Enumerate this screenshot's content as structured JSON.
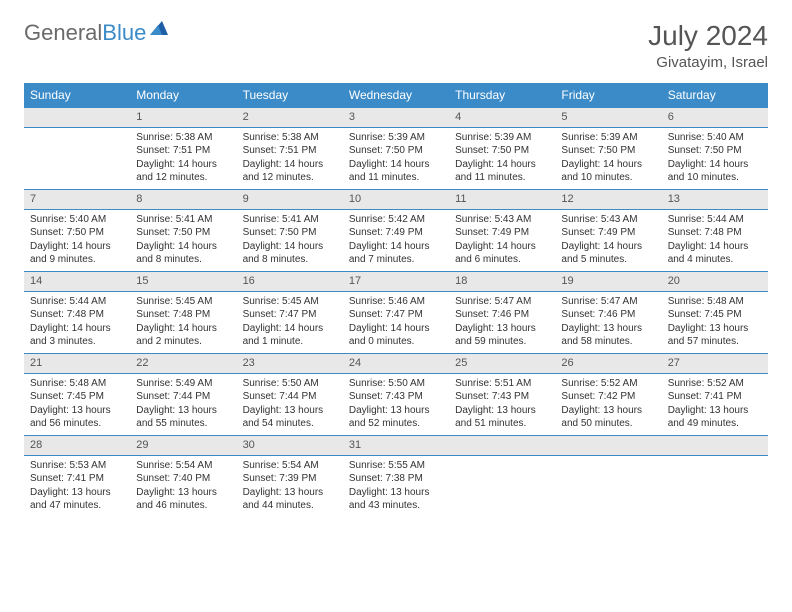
{
  "logo": {
    "general": "General",
    "blue": "Blue"
  },
  "title": "July 2024",
  "location": "Givatayim, Israel",
  "colors": {
    "header_bg": "#3b8bc9",
    "header_text": "#ffffff",
    "daynum_bg": "#e8e8e8",
    "daynum_border": "#3b8bc9",
    "body_text": "#333333",
    "title_text": "#555555"
  },
  "weekdays": [
    "Sunday",
    "Monday",
    "Tuesday",
    "Wednesday",
    "Thursday",
    "Friday",
    "Saturday"
  ],
  "weeks": [
    [
      {
        "n": "",
        "sr": "",
        "ss": "",
        "dl": ""
      },
      {
        "n": "1",
        "sr": "Sunrise: 5:38 AM",
        "ss": "Sunset: 7:51 PM",
        "dl": "Daylight: 14 hours and 12 minutes."
      },
      {
        "n": "2",
        "sr": "Sunrise: 5:38 AM",
        "ss": "Sunset: 7:51 PM",
        "dl": "Daylight: 14 hours and 12 minutes."
      },
      {
        "n": "3",
        "sr": "Sunrise: 5:39 AM",
        "ss": "Sunset: 7:50 PM",
        "dl": "Daylight: 14 hours and 11 minutes."
      },
      {
        "n": "4",
        "sr": "Sunrise: 5:39 AM",
        "ss": "Sunset: 7:50 PM",
        "dl": "Daylight: 14 hours and 11 minutes."
      },
      {
        "n": "5",
        "sr": "Sunrise: 5:39 AM",
        "ss": "Sunset: 7:50 PM",
        "dl": "Daylight: 14 hours and 10 minutes."
      },
      {
        "n": "6",
        "sr": "Sunrise: 5:40 AM",
        "ss": "Sunset: 7:50 PM",
        "dl": "Daylight: 14 hours and 10 minutes."
      }
    ],
    [
      {
        "n": "7",
        "sr": "Sunrise: 5:40 AM",
        "ss": "Sunset: 7:50 PM",
        "dl": "Daylight: 14 hours and 9 minutes."
      },
      {
        "n": "8",
        "sr": "Sunrise: 5:41 AM",
        "ss": "Sunset: 7:50 PM",
        "dl": "Daylight: 14 hours and 8 minutes."
      },
      {
        "n": "9",
        "sr": "Sunrise: 5:41 AM",
        "ss": "Sunset: 7:50 PM",
        "dl": "Daylight: 14 hours and 8 minutes."
      },
      {
        "n": "10",
        "sr": "Sunrise: 5:42 AM",
        "ss": "Sunset: 7:49 PM",
        "dl": "Daylight: 14 hours and 7 minutes."
      },
      {
        "n": "11",
        "sr": "Sunrise: 5:43 AM",
        "ss": "Sunset: 7:49 PM",
        "dl": "Daylight: 14 hours and 6 minutes."
      },
      {
        "n": "12",
        "sr": "Sunrise: 5:43 AM",
        "ss": "Sunset: 7:49 PM",
        "dl": "Daylight: 14 hours and 5 minutes."
      },
      {
        "n": "13",
        "sr": "Sunrise: 5:44 AM",
        "ss": "Sunset: 7:48 PM",
        "dl": "Daylight: 14 hours and 4 minutes."
      }
    ],
    [
      {
        "n": "14",
        "sr": "Sunrise: 5:44 AM",
        "ss": "Sunset: 7:48 PM",
        "dl": "Daylight: 14 hours and 3 minutes."
      },
      {
        "n": "15",
        "sr": "Sunrise: 5:45 AM",
        "ss": "Sunset: 7:48 PM",
        "dl": "Daylight: 14 hours and 2 minutes."
      },
      {
        "n": "16",
        "sr": "Sunrise: 5:45 AM",
        "ss": "Sunset: 7:47 PM",
        "dl": "Daylight: 14 hours and 1 minute."
      },
      {
        "n": "17",
        "sr": "Sunrise: 5:46 AM",
        "ss": "Sunset: 7:47 PM",
        "dl": "Daylight: 14 hours and 0 minutes."
      },
      {
        "n": "18",
        "sr": "Sunrise: 5:47 AM",
        "ss": "Sunset: 7:46 PM",
        "dl": "Daylight: 13 hours and 59 minutes."
      },
      {
        "n": "19",
        "sr": "Sunrise: 5:47 AM",
        "ss": "Sunset: 7:46 PM",
        "dl": "Daylight: 13 hours and 58 minutes."
      },
      {
        "n": "20",
        "sr": "Sunrise: 5:48 AM",
        "ss": "Sunset: 7:45 PM",
        "dl": "Daylight: 13 hours and 57 minutes."
      }
    ],
    [
      {
        "n": "21",
        "sr": "Sunrise: 5:48 AM",
        "ss": "Sunset: 7:45 PM",
        "dl": "Daylight: 13 hours and 56 minutes."
      },
      {
        "n": "22",
        "sr": "Sunrise: 5:49 AM",
        "ss": "Sunset: 7:44 PM",
        "dl": "Daylight: 13 hours and 55 minutes."
      },
      {
        "n": "23",
        "sr": "Sunrise: 5:50 AM",
        "ss": "Sunset: 7:44 PM",
        "dl": "Daylight: 13 hours and 54 minutes."
      },
      {
        "n": "24",
        "sr": "Sunrise: 5:50 AM",
        "ss": "Sunset: 7:43 PM",
        "dl": "Daylight: 13 hours and 52 minutes."
      },
      {
        "n": "25",
        "sr": "Sunrise: 5:51 AM",
        "ss": "Sunset: 7:43 PM",
        "dl": "Daylight: 13 hours and 51 minutes."
      },
      {
        "n": "26",
        "sr": "Sunrise: 5:52 AM",
        "ss": "Sunset: 7:42 PM",
        "dl": "Daylight: 13 hours and 50 minutes."
      },
      {
        "n": "27",
        "sr": "Sunrise: 5:52 AM",
        "ss": "Sunset: 7:41 PM",
        "dl": "Daylight: 13 hours and 49 minutes."
      }
    ],
    [
      {
        "n": "28",
        "sr": "Sunrise: 5:53 AM",
        "ss": "Sunset: 7:41 PM",
        "dl": "Daylight: 13 hours and 47 minutes."
      },
      {
        "n": "29",
        "sr": "Sunrise: 5:54 AM",
        "ss": "Sunset: 7:40 PM",
        "dl": "Daylight: 13 hours and 46 minutes."
      },
      {
        "n": "30",
        "sr": "Sunrise: 5:54 AM",
        "ss": "Sunset: 7:39 PM",
        "dl": "Daylight: 13 hours and 44 minutes."
      },
      {
        "n": "31",
        "sr": "Sunrise: 5:55 AM",
        "ss": "Sunset: 7:38 PM",
        "dl": "Daylight: 13 hours and 43 minutes."
      },
      {
        "n": "",
        "sr": "",
        "ss": "",
        "dl": ""
      },
      {
        "n": "",
        "sr": "",
        "ss": "",
        "dl": ""
      },
      {
        "n": "",
        "sr": "",
        "ss": "",
        "dl": ""
      }
    ]
  ]
}
